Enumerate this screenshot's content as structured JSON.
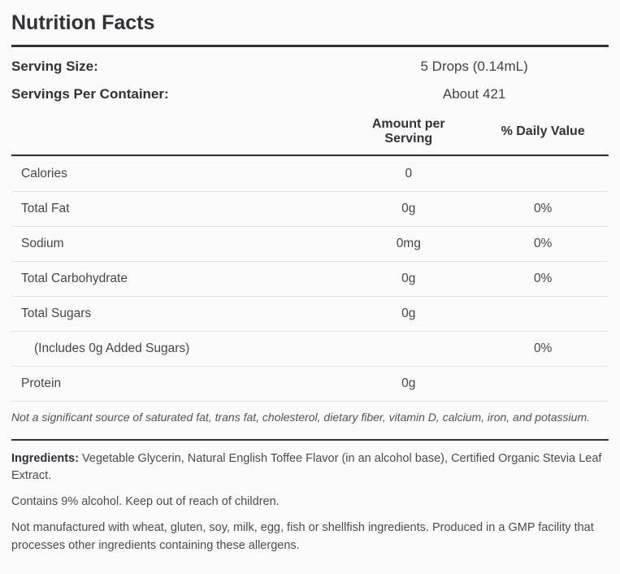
{
  "title": "Nutrition Facts",
  "serving": {
    "size_label": "Serving Size:",
    "size_value": "5 Drops (0.14mL)",
    "per_container_label": "Servings Per Container:",
    "per_container_value": "About 421"
  },
  "headers": {
    "amount": "Amount per Serving",
    "dv": "% Daily Value"
  },
  "rows": [
    {
      "name": "Calories",
      "amount": "0",
      "dv": "",
      "indent": false
    },
    {
      "name": "Total Fat",
      "amount": "0g",
      "dv": "0%",
      "indent": false
    },
    {
      "name": "Sodium",
      "amount": "0mg",
      "dv": "0%",
      "indent": false
    },
    {
      "name": "Total Carbohydrate",
      "amount": "0g",
      "dv": "0%",
      "indent": false
    },
    {
      "name": "Total Sugars",
      "amount": "0g",
      "dv": "",
      "indent": false
    },
    {
      "name": "(Includes 0g Added Sugars)",
      "amount": "",
      "dv": "0%",
      "indent": true
    },
    {
      "name": "Protein",
      "amount": "0g",
      "dv": "",
      "indent": false
    }
  ],
  "not_significant": "Not a significant source of saturated fat, trans fat, cholesterol, dietary fiber, vitamin D, calcium, iron, and potassium.",
  "ingredients_label": "Ingredients:",
  "ingredients_text": " Vegetable Glycerin, Natural English Toffee Flavor (in an alcohol base), Certified Organic Stevia Leaf Extract.",
  "alcohol_note": "Contains 9% alcohol. Keep out of reach of children.",
  "allergen_note": "Not manufactured with wheat, gluten, soy, milk, egg, fish or shellfish ingredients. Produced in a GMP facility that processes other ingredients containing these allergens.",
  "style": {
    "background": "#fbfbfb",
    "text_color": "#44464a",
    "heading_color": "#303237",
    "thick_rule_color": "#303237",
    "row_border_color": "#e2e2e2",
    "title_fontsize": 25,
    "body_fontsize": 15.5,
    "small_fontsize": 14
  }
}
